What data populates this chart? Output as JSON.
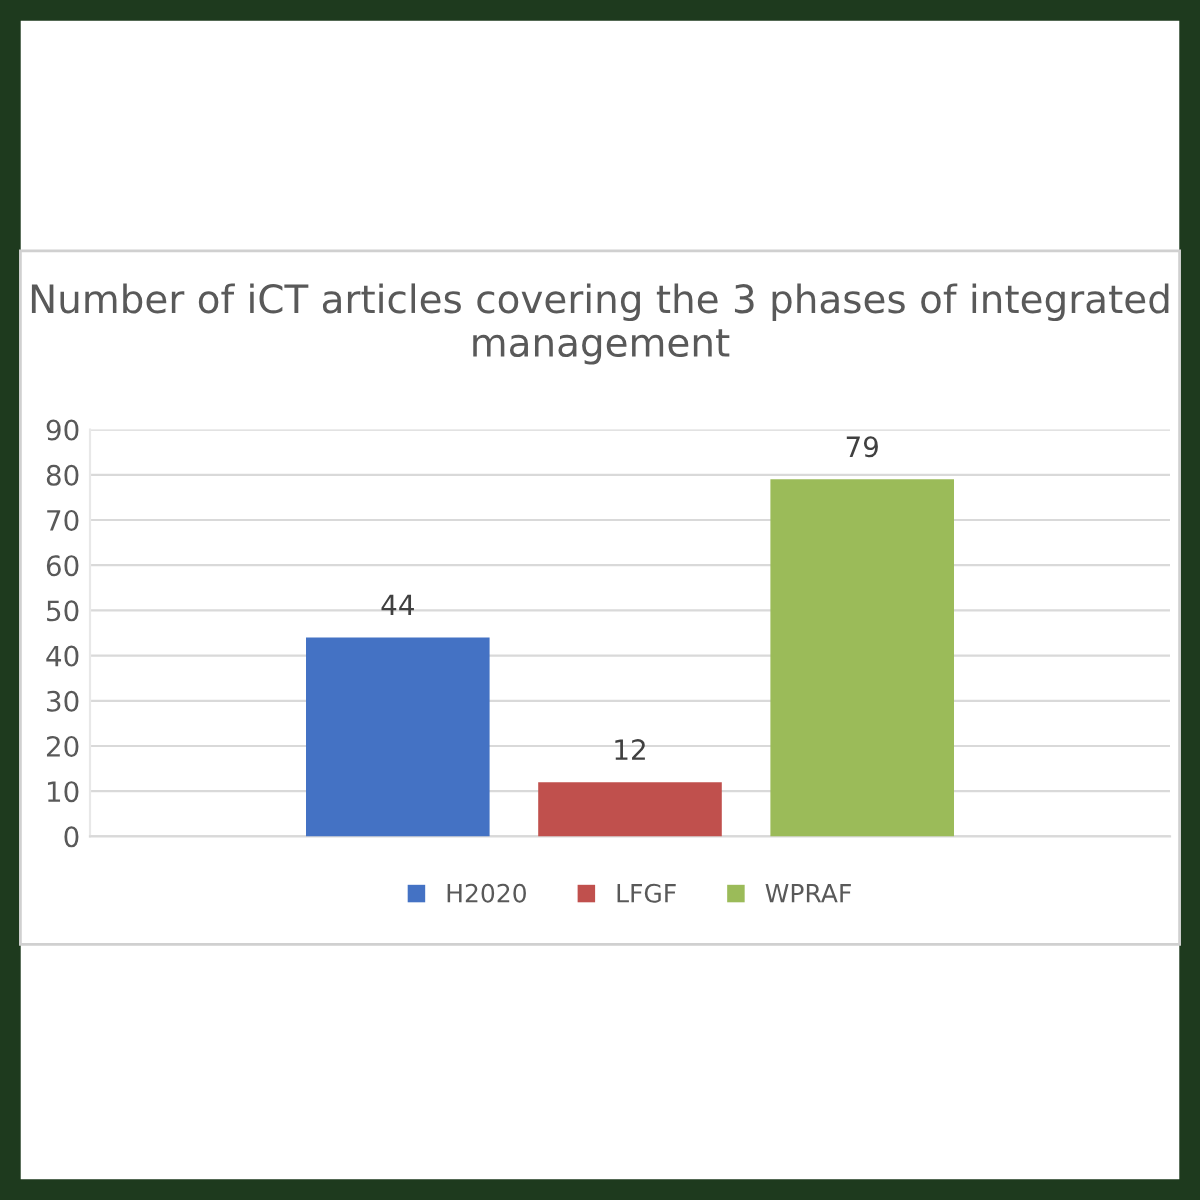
{
  "chart_data": {
    "type": "bar",
    "title": "Number of iCT articles covering the 3 phases of integrated management",
    "categories": [
      null
    ],
    "series": [
      {
        "name": "H2020",
        "color": "#4472c4",
        "values": [
          44
        ]
      },
      {
        "name": "LFGF",
        "color": "#c0504d",
        "values": [
          12
        ]
      },
      {
        "name": "WPRAF",
        "color": "#9bbb59",
        "values": [
          79
        ]
      }
    ],
    "ylim": [
      0,
      90
    ],
    "yticks": [
      0,
      10,
      20,
      30,
      40,
      50,
      60,
      70,
      80,
      90
    ],
    "grid": "y",
    "legend": "bottom",
    "data_labels": true
  }
}
